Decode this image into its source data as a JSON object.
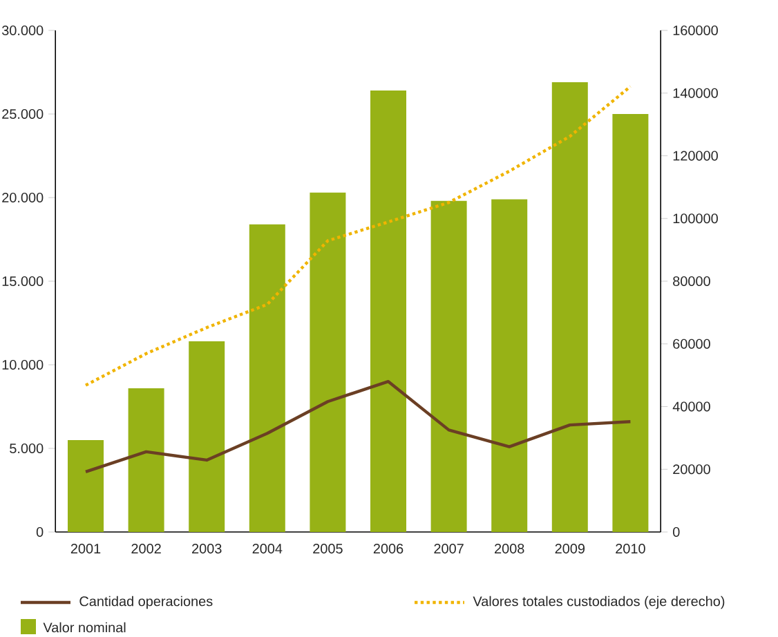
{
  "chart_data": {
    "type": "bar",
    "categories": [
      "2001",
      "2002",
      "2003",
      "2004",
      "2005",
      "2006",
      "2007",
      "2008",
      "2009",
      "2010"
    ],
    "series": [
      {
        "name": "Cantidad operaciones",
        "type": "line",
        "color": "#6b3f24",
        "line_style": "solid",
        "values": [
          3600,
          4800,
          4300,
          5900,
          7800,
          9000,
          6100,
          5100,
          6400,
          6600
        ]
      },
      {
        "name": "Valores totales custodiados (eje derecho)",
        "type": "line",
        "axis": "y2",
        "color": "#f0b400",
        "line_style": "dotted",
        "values": [
          46800,
          56900,
          65200,
          72600,
          92900,
          98900,
          105100,
          115100,
          126200,
          142100
        ]
      },
      {
        "name": "Valor nominal",
        "color": "#97b216",
        "values": [
          5500,
          8600,
          11400,
          18400,
          20300,
          26400,
          19800,
          19900,
          26900,
          25000
        ]
      }
    ],
    "ylim": [
      0,
      30000
    ],
    "yticks": [
      0,
      {
        "value": 5000,
        "label": "5.000"
      },
      {
        "value": 10000,
        "label": "10.000"
      },
      {
        "value": 15000,
        "label": "15.000"
      },
      {
        "value": 20000,
        "label": "20.000"
      },
      {
        "value": 25000,
        "label": "25.000"
      },
      {
        "value": 30000,
        "label": "30.000"
      }
    ],
    "y2lim": [
      0,
      160000
    ],
    "y2ticks": [
      0,
      20000,
      40000,
      60000,
      80000,
      100000,
      120000,
      140000,
      160000
    ],
    "legend": "bottom",
    "grid": false,
    "marker": "none"
  }
}
